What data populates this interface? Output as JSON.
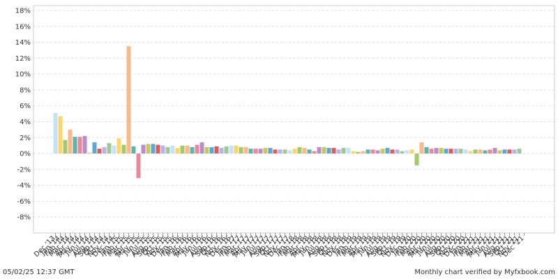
{
  "chart_data": {
    "type": "bar",
    "categories": [
      "Dec '13",
      "Jan '14",
      "Feb '14",
      "Mar '14",
      "Apr '14",
      "May '14",
      "Jun '14",
      "Jul '14",
      "Aug '14",
      "Sep '14",
      "Oct '14",
      "Nov '14",
      "Dec '14",
      "Jan '15",
      "Feb '15",
      "Mar '15",
      "Apr '15",
      "May '15",
      "Jun '15",
      "Jul '15",
      "Aug '15",
      "Sep '15",
      "Oct '15",
      "Nov '15",
      "Dec '15",
      "Jan '16",
      "Feb '16",
      "Mar '16",
      "Apr '16",
      "May '16",
      "Jun '16",
      "Jul '16",
      "Aug '16",
      "Sep '16",
      "Oct '16",
      "Nov '16",
      "Dec '16",
      "Jan '17",
      "Feb '17",
      "Mar '17",
      "Apr '17",
      "May '17",
      "Jun '17",
      "Jul '17",
      "Aug '17",
      "Sep '17",
      "Oct '17",
      "Nov '17",
      "Dec '17",
      "Jan '18",
      "Feb '18",
      "Mar '18",
      "Apr '18",
      "May '18",
      "Jun '18",
      "Jul '18",
      "Aug '18",
      "Sep '18",
      "Oct '18",
      "Nov '18",
      "Dec '18",
      "Jan '19",
      "Feb '19",
      "Mar '19",
      "Apr '19",
      "May '19",
      "Jun '19",
      "Jul '19",
      "Aug '19",
      "Sep '19",
      "Oct '19",
      "Nov '19",
      "Dec '19",
      "Jan '20",
      "Feb '20",
      "Mar '20",
      "Apr '20",
      "May '20",
      "Jun '20",
      "Jul '20",
      "Aug '20",
      "Sep '20",
      "Oct '20",
      "Nov '20",
      "Dec '20",
      "Jan '21",
      "Feb '21",
      "Mar '21",
      "Apr '21",
      "May '21",
      "Jun '21",
      "Jul '21",
      "Aug '21",
      "Sep '21",
      "Oct '21",
      "Nov '21",
      "Dec '21"
    ],
    "values": [
      5.1,
      4.7,
      1.7,
      3.0,
      2.1,
      2.1,
      2.2,
      0.1,
      1.4,
      0.6,
      0.8,
      1.3,
      1.0,
      1.9,
      1.1,
      13.5,
      0.9,
      -3.1,
      1.1,
      1.2,
      1.2,
      1.1,
      1.0,
      0.8,
      1.0,
      0.7,
      1.0,
      1.0,
      0.8,
      1.1,
      1.4,
      0.8,
      0.8,
      0.9,
      0.7,
      0.9,
      1.0,
      1.0,
      0.8,
      0.8,
      0.6,
      0.6,
      0.6,
      0.7,
      0.7,
      0.5,
      0.5,
      0.5,
      0.4,
      0.6,
      0.8,
      0.7,
      0.5,
      0.3,
      0.8,
      0.8,
      0.7,
      0.7,
      0.5,
      0.7,
      0.7,
      0.3,
      0.2,
      0.3,
      0.5,
      0.5,
      0.4,
      0.6,
      0.7,
      0.5,
      0.5,
      0.3,
      0.4,
      0.5,
      -1.5,
      1.4,
      0.8,
      0.6,
      0.7,
      0.7,
      0.6,
      0.6,
      0.6,
      0.6,
      0.5,
      0.3,
      0.5,
      0.5,
      0.4,
      0.5,
      0.7,
      0.4,
      0.5,
      0.5,
      0.5,
      0.6,
      0.0
    ],
    "colors": [
      "#c6e2f7",
      "#fad66e",
      "#a5c96a",
      "#f9b98b",
      "#5fb3a9",
      "#e78a9c",
      "#b78ec9",
      "#c8c862",
      "#5fa7d0",
      "#d45f5f",
      "#b9b3e3",
      "#a0c79a"
    ],
    "ylim": [
      -10,
      18
    ],
    "yticks": [
      {
        "value": -8,
        "label": "-8%"
      },
      {
        "value": -6,
        "label": "-6%"
      },
      {
        "value": -4,
        "label": "-4%"
      },
      {
        "value": -2,
        "label": "-2%"
      },
      {
        "value": 0,
        "label": "0%"
      },
      {
        "value": 2,
        "label": "2%"
      },
      {
        "value": 4,
        "label": "4%"
      },
      {
        "value": 6,
        "label": "6%"
      },
      {
        "value": 8,
        "label": "8%"
      },
      {
        "value": 10,
        "label": "10%"
      },
      {
        "value": 12,
        "label": "12%"
      },
      {
        "value": 14,
        "label": "14%"
      },
      {
        "value": 16,
        "label": "16%"
      },
      {
        "value": 18,
        "label": "18%"
      }
    ],
    "grid": true,
    "timestamp": "05/02/25 12:37 GMT",
    "footer": "Monthly chart verified by Myfxbook.com"
  }
}
